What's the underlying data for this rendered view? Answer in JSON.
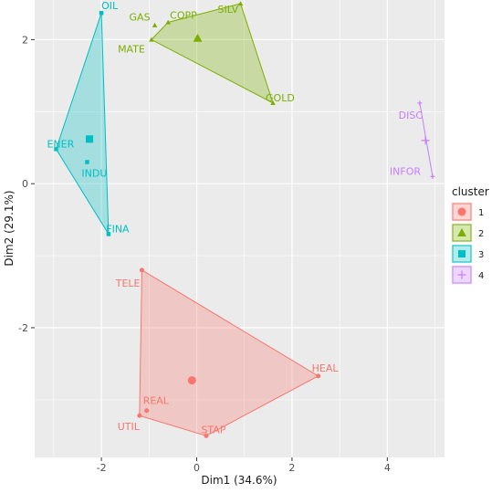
{
  "chart_data": {
    "type": "scatter",
    "subtype": "cluster-plot",
    "title": "",
    "xlabel": "Dim1 (34.6%)",
    "ylabel": "Dim2 (29.1%)",
    "xlim": [
      -3.4,
      5.2
    ],
    "ylim": [
      -3.8,
      2.55
    ],
    "xticks": [
      -2,
      0,
      2,
      4
    ],
    "yticks": [
      -2,
      0,
      2
    ],
    "tick_labels_x": [
      "-2",
      "0",
      "2",
      "4"
    ],
    "tick_labels_y": [
      "-2",
      "0",
      "2"
    ],
    "grid": true,
    "legend": {
      "title": "cluster",
      "position": "right",
      "entries": [
        "1",
        "2",
        "3",
        "4"
      ]
    },
    "clusters": [
      {
        "name": "1",
        "color": "#F8766D",
        "marker": "circle",
        "hull": [
          "TELE",
          "HEAL",
          "STAP",
          "UTIL"
        ],
        "centroid": {
          "x": -0.1,
          "y": -2.73
        },
        "points": [
          {
            "label": "TELE",
            "x": -1.15,
            "y": -1.2
          },
          {
            "label": "HEAL",
            "x": 2.55,
            "y": -2.67
          },
          {
            "label": "STAP",
            "x": 0.2,
            "y": -3.5
          },
          {
            "label": "REAL",
            "x": -1.05,
            "y": -3.15
          },
          {
            "label": "UTIL",
            "x": -1.2,
            "y": -3.22
          }
        ]
      },
      {
        "name": "2",
        "color": "#7CAE00",
        "marker": "triangle",
        "hull": [
          "MATE",
          "COPP",
          "SILV",
          "GOLD"
        ],
        "centroid": {
          "x": 0.02,
          "y": 2.02
        },
        "points": [
          {
            "label": "GAS",
            "x": -0.88,
            "y": 2.2
          },
          {
            "label": "COPP",
            "x": -0.6,
            "y": 2.24
          },
          {
            "label": "SILV",
            "x": 0.92,
            "y": 2.5
          },
          {
            "label": "MATE",
            "x": -0.95,
            "y": 2.0
          },
          {
            "label": "GOLD",
            "x": 1.6,
            "y": 1.12
          }
        ]
      },
      {
        "name": "3",
        "color": "#00BFC4",
        "marker": "square",
        "hull": [
          "OIL",
          "ENER",
          "FINA"
        ],
        "centroid": {
          "x": -2.25,
          "y": 0.62
        },
        "points": [
          {
            "label": "OIL",
            "x": -2.0,
            "y": 2.37
          },
          {
            "label": "ENER",
            "x": -2.95,
            "y": 0.48
          },
          {
            "label": "INDU",
            "x": -2.3,
            "y": 0.3
          },
          {
            "label": "FINA",
            "x": -1.85,
            "y": -0.7
          }
        ]
      },
      {
        "name": "4",
        "color": "#C77CFF",
        "marker": "cross",
        "hull": [
          "DISC",
          "INFOR"
        ],
        "centroid": {
          "x": 4.8,
          "y": 0.6
        },
        "points": [
          {
            "label": "DISC",
            "x": 4.68,
            "y": 1.12
          },
          {
            "label": "INFOR",
            "x": 4.95,
            "y": 0.1
          }
        ]
      }
    ]
  }
}
